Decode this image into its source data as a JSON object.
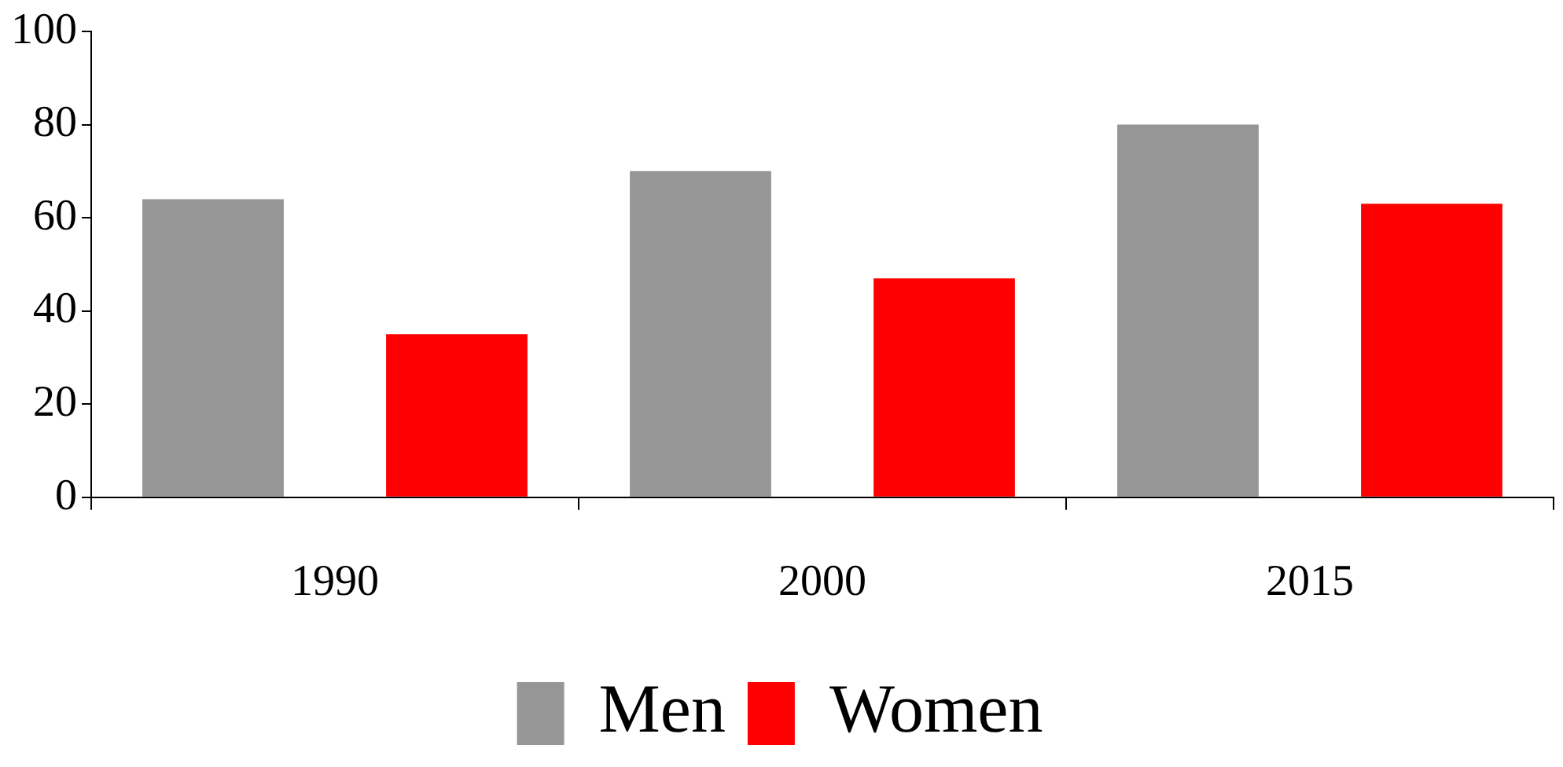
{
  "chart_data": {
    "type": "bar",
    "categories": [
      "1990",
      "2000",
      "2015"
    ],
    "series": [
      {
        "name": "Men",
        "color": "#969696",
        "values": [
          64,
          70,
          80
        ]
      },
      {
        "name": "Women",
        "color": "#ff0000",
        "values": [
          35,
          47,
          63
        ]
      }
    ],
    "ylim": [
      0,
      100
    ],
    "yticks": [
      0,
      20,
      40,
      60,
      80,
      100
    ],
    "grid": false,
    "legend": "bottom"
  }
}
